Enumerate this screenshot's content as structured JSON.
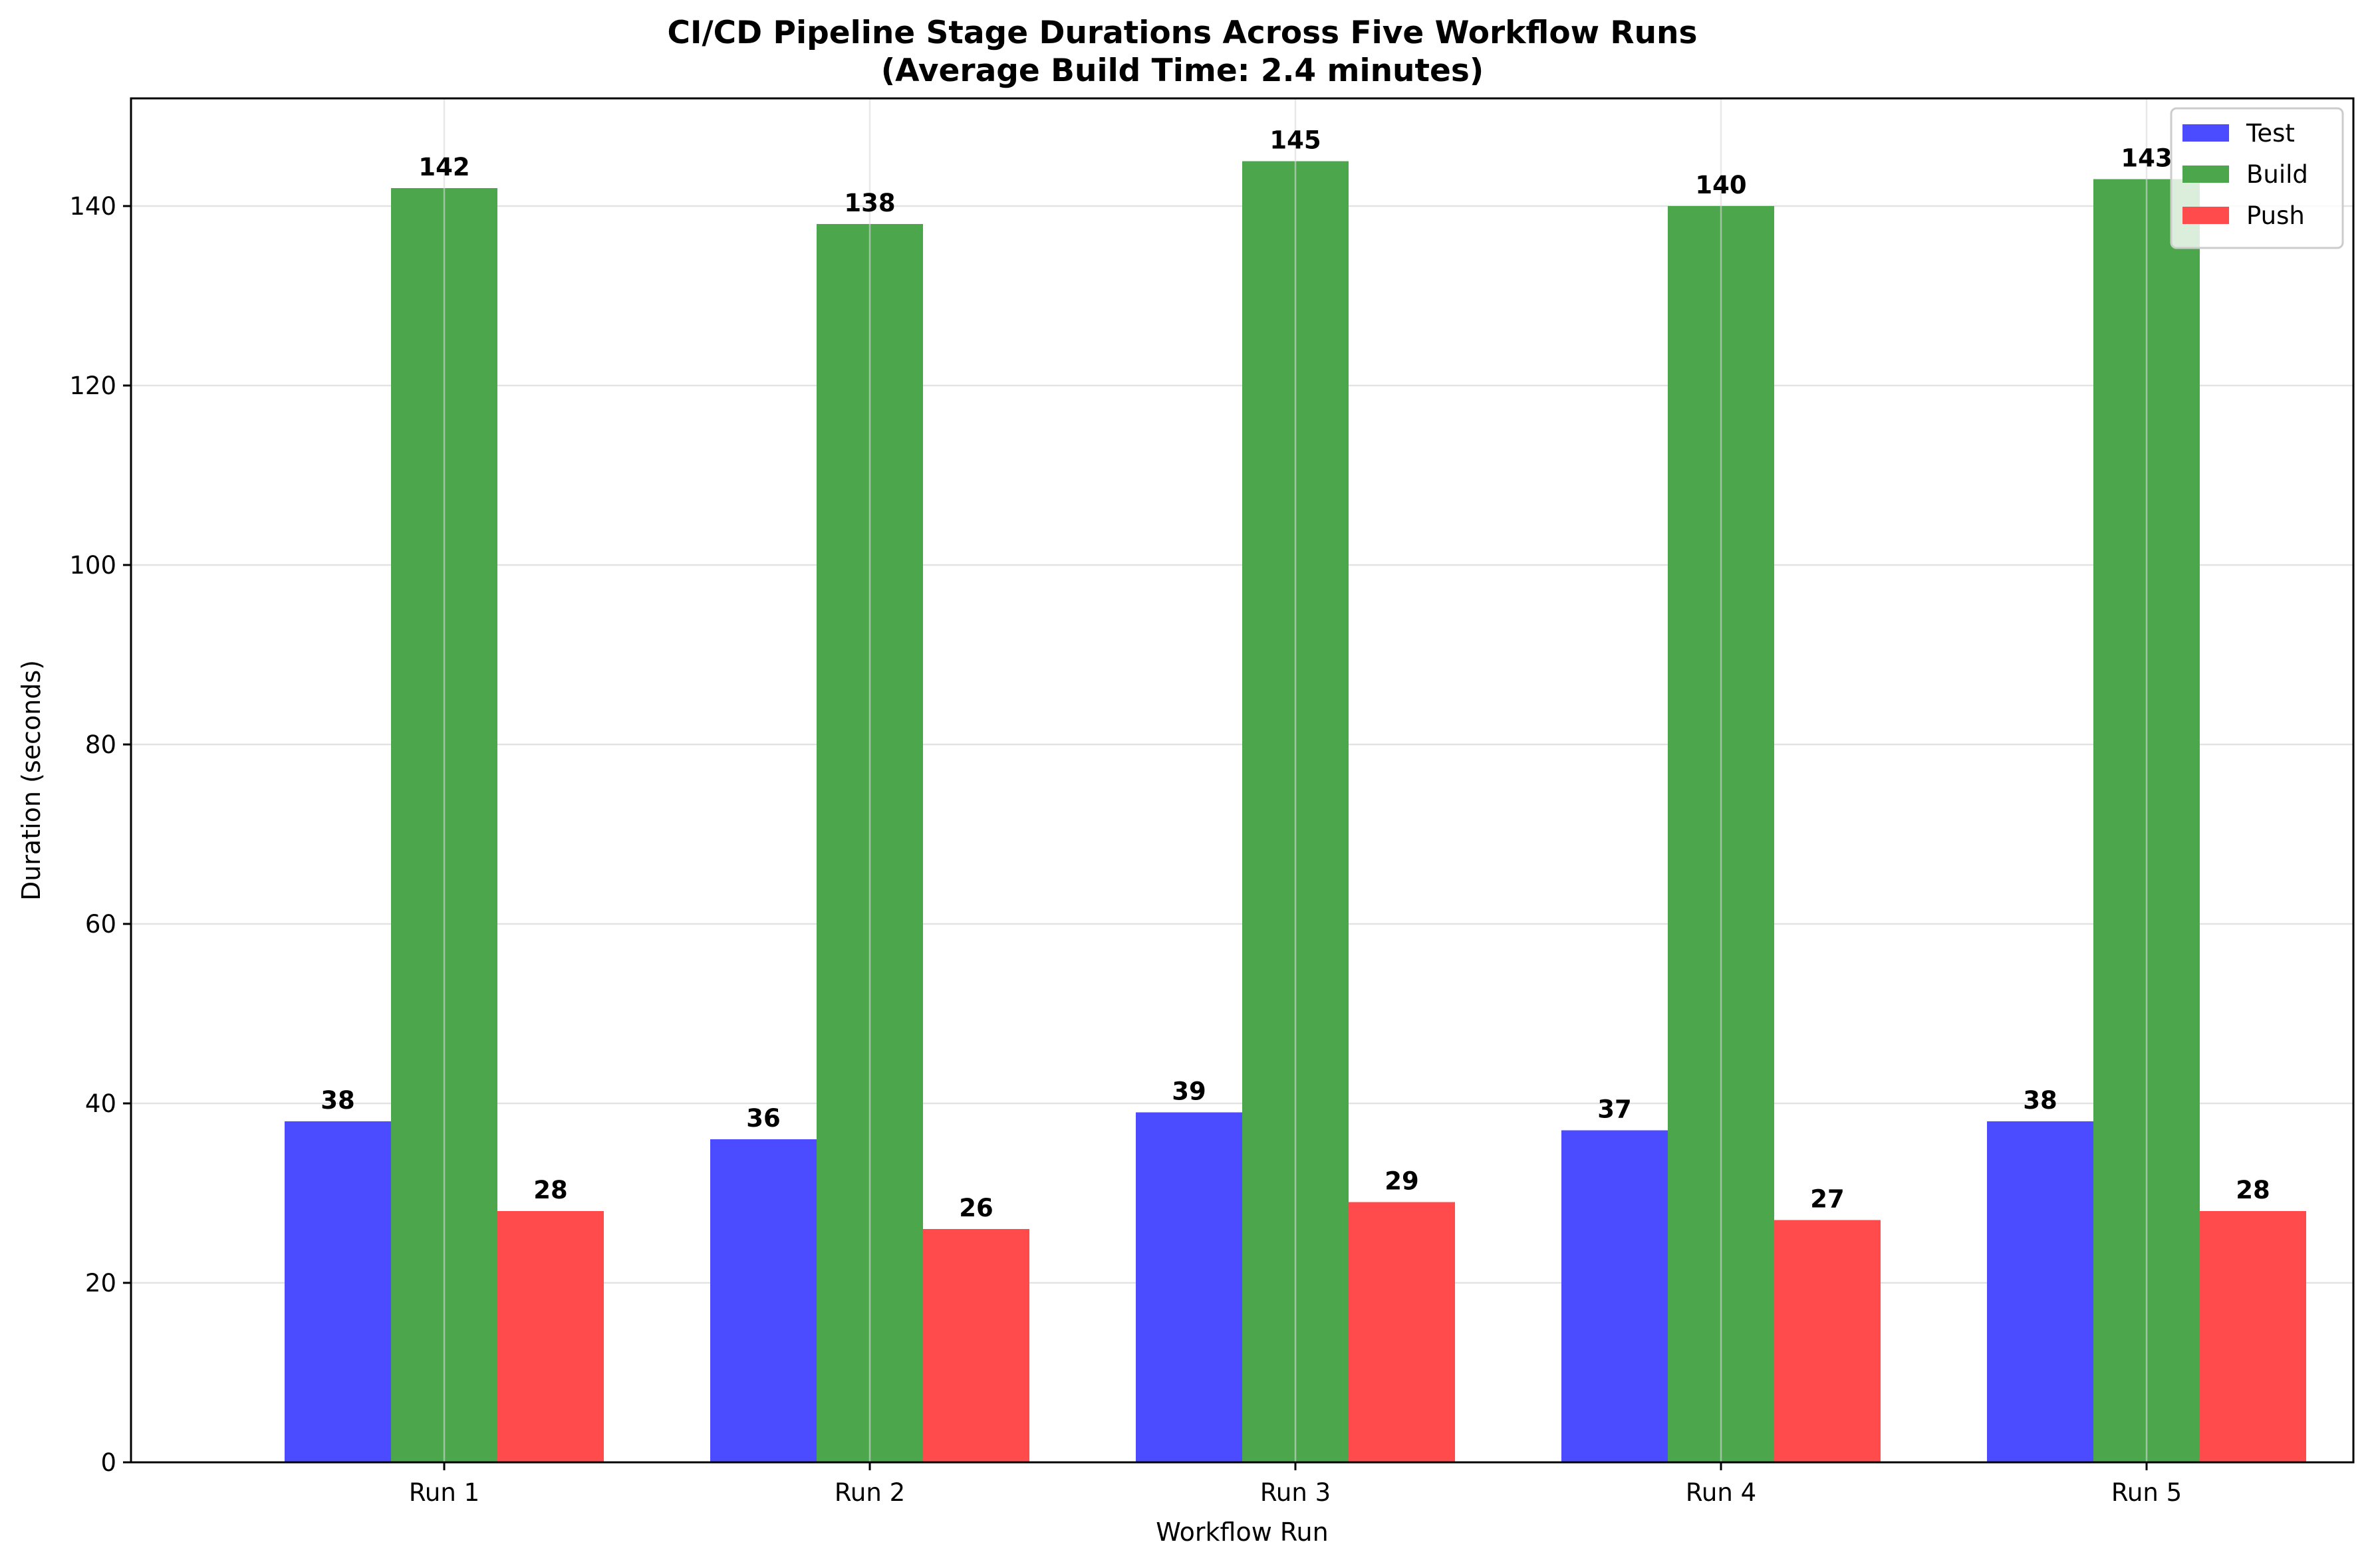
{
  "chart_data": {
    "type": "bar",
    "title": "CI/CD Pipeline Stage Durations Across Five Workflow Runs",
    "subtitle": "(Average Build Time: 2.4 minutes)",
    "xlabel": "Workflow Run",
    "ylabel": "Duration (seconds)",
    "categories": [
      "Run 1",
      "Run 2",
      "Run 3",
      "Run 4",
      "Run 5"
    ],
    "ylim": [
      0,
      152
    ],
    "yticks": [
      0,
      20,
      40,
      60,
      80,
      100,
      120,
      140
    ],
    "grid": true,
    "legend_position": "top-right",
    "series": [
      {
        "name": "Test",
        "color": "#4b4bff",
        "values": [
          38,
          36,
          39,
          37,
          38
        ]
      },
      {
        "name": "Build",
        "color": "#4ca64c",
        "values": [
          142,
          138,
          145,
          140,
          143
        ]
      },
      {
        "name": "Push",
        "color": "#ff4b4b",
        "values": [
          28,
          26,
          29,
          27,
          28
        ]
      }
    ]
  }
}
